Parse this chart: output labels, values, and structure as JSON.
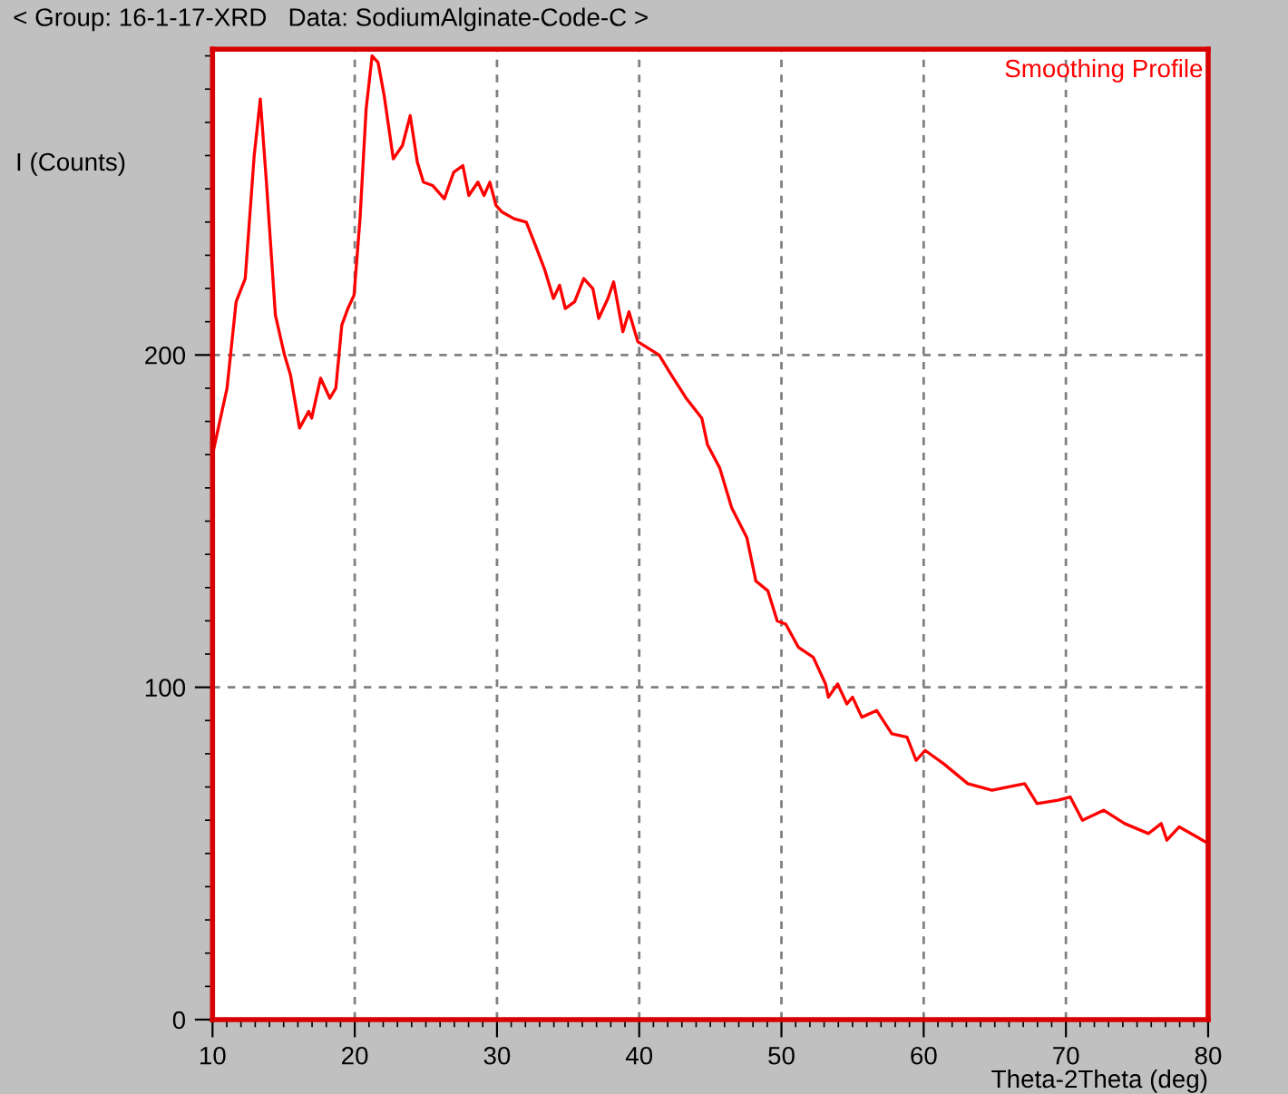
{
  "chart_data": {
    "type": "line",
    "title": "< Group: 16-1-17-XRD   Data: SodiumAlginate-Code-C >",
    "xlabel": "Theta-2Theta (deg)",
    "ylabel": "I (Counts)",
    "annotations": [
      "Smoothing Profile"
    ],
    "series": [
      {
        "color": "#ff0000",
        "x": [
          10,
          11.02,
          11.66,
          12.3,
          12.93,
          13.36,
          13.79,
          14.42,
          15.06,
          15.48,
          16.12,
          16.76,
          16.97,
          17.6,
          18.25,
          18.67,
          19.09,
          19.52,
          19.95,
          20.37,
          20.8,
          21.22,
          21.64,
          22.07,
          22.71,
          23.35,
          23.9,
          24.4,
          24.83,
          25.47,
          26.3,
          26.96,
          27.6,
          28.02,
          28.66,
          29.09,
          29.5,
          29.93,
          30.36,
          31.2,
          32.06,
          32.7,
          33.33,
          33.97,
          34.4,
          34.8,
          35.46,
          36.1,
          36.74,
          37.15,
          37.8,
          38.2,
          38.85,
          39.28,
          39.9,
          41.4,
          42.26,
          43.3,
          44.4,
          44.8,
          45.66,
          46.5,
          47.57,
          48.2,
          49.05,
          49.7,
          50.3,
          51.2,
          52.24,
          53.1,
          53.3,
          53.95,
          54.6,
          55,
          55.65,
          56.7,
          57.76,
          58.83,
          59.47,
          60.1,
          61.4,
          63.1,
          64.8,
          67.1,
          67.97,
          69.45,
          70.3,
          71.16,
          72.65,
          74.13,
          75.8,
          76.7,
          77.1,
          77.96,
          79.2,
          80
        ],
        "values": [
          170,
          190,
          216,
          223,
          260,
          277,
          252,
          212,
          200,
          194,
          178,
          183,
          181,
          193,
          187,
          190,
          209,
          214,
          218,
          241,
          274,
          290,
          288,
          278,
          259,
          263,
          272,
          258,
          252,
          251,
          247,
          255,
          257,
          248,
          252,
          248,
          252,
          245,
          243,
          241,
          240,
          233,
          226,
          217,
          221,
          214,
          216,
          223,
          220,
          211,
          217,
          222,
          207,
          213,
          204,
          200,
          194,
          187,
          181,
          173,
          166,
          154,
          145,
          132,
          129,
          120,
          119,
          112,
          109,
          101,
          97,
          101,
          95,
          97,
          91,
          93,
          86,
          85,
          78,
          81,
          77,
          71,
          69,
          71,
          65,
          66,
          67,
          60,
          63,
          59,
          56,
          59,
          54,
          58,
          55,
          53
        ]
      }
    ],
    "xlim": [
      10,
      80
    ],
    "ylim": [
      0,
      292
    ],
    "xticks": [
      10,
      {
        "value": 11,
        "label": null
      },
      {
        "value": 12,
        "label": null
      },
      {
        "value": 13,
        "label": null
      },
      {
        "value": 14,
        "label": null
      },
      {
        "value": 15,
        "label": null
      },
      {
        "value": 16,
        "label": null
      },
      {
        "value": 17,
        "label": null
      },
      {
        "value": 18,
        "label": null
      },
      {
        "value": 19,
        "label": null
      },
      20,
      {
        "value": 21,
        "label": null
      },
      {
        "value": 22,
        "label": null
      },
      {
        "value": 23,
        "label": null
      },
      {
        "value": 24,
        "label": null
      },
      {
        "value": 25,
        "label": null
      },
      {
        "value": 26,
        "label": null
      },
      {
        "value": 27,
        "label": null
      },
      {
        "value": 28,
        "label": null
      },
      {
        "value": 29,
        "label": null
      },
      30,
      {
        "value": 31,
        "label": null
      },
      {
        "value": 32,
        "label": null
      },
      {
        "value": 33,
        "label": null
      },
      {
        "value": 34,
        "label": null
      },
      {
        "value": 35,
        "label": null
      },
      {
        "value": 36,
        "label": null
      },
      {
        "value": 37,
        "label": null
      },
      {
        "value": 38,
        "label": null
      },
      {
        "value": 39,
        "label": null
      },
      40,
      {
        "value": 41,
        "label": null
      },
      {
        "value": 42,
        "label": null
      },
      {
        "value": 43,
        "label": null
      },
      {
        "value": 44,
        "label": null
      },
      {
        "value": 45,
        "label": null
      },
      {
        "value": 46,
        "label": null
      },
      {
        "value": 47,
        "label": null
      },
      {
        "value": 48,
        "label": null
      },
      {
        "value": 49,
        "label": null
      },
      50,
      {
        "value": 51,
        "label": null
      },
      {
        "value": 52,
        "label": null
      },
      {
        "value": 53,
        "label": null
      },
      {
        "value": 54,
        "label": null
      },
      {
        "value": 55,
        "label": null
      },
      {
        "value": 56,
        "label": null
      },
      {
        "value": 57,
        "label": null
      },
      {
        "value": 58,
        "label": null
      },
      {
        "value": 59,
        "label": null
      },
      60,
      {
        "value": 61,
        "label": null
      },
      {
        "value": 62,
        "label": null
      },
      {
        "value": 63,
        "label": null
      },
      {
        "value": 64,
        "label": null
      },
      {
        "value": 65,
        "label": null
      },
      {
        "value": 66,
        "label": null
      },
      {
        "value": 67,
        "label": null
      },
      {
        "value": 68,
        "label": null
      },
      {
        "value": 69,
        "label": null
      },
      70,
      {
        "value": 71,
        "label": null
      },
      {
        "value": 72,
        "label": null
      },
      {
        "value": 73,
        "label": null
      },
      {
        "value": 74,
        "label": null
      },
      {
        "value": 75,
        "label": null
      },
      {
        "value": 76,
        "label": null
      },
      {
        "value": 77,
        "label": null
      },
      {
        "value": 78,
        "label": null
      },
      {
        "value": 79,
        "label": null
      },
      80
    ],
    "yticks": [
      0,
      {
        "value": 10,
        "label": null
      },
      {
        "value": 20,
        "label": null
      },
      {
        "value": 30,
        "label": null
      },
      {
        "value": 40,
        "label": null
      },
      {
        "value": 50,
        "label": null
      },
      {
        "value": 60,
        "label": null
      },
      {
        "value": 70,
        "label": null
      },
      {
        "value": 80,
        "label": null
      },
      {
        "value": 90,
        "label": null
      },
      100,
      {
        "value": 110,
        "label": null
      },
      {
        "value": 120,
        "label": null
      },
      {
        "value": 130,
        "label": null
      },
      {
        "value": 140,
        "label": null
      },
      {
        "value": 150,
        "label": null
      },
      {
        "value": 160,
        "label": null
      },
      {
        "value": 170,
        "label": null
      },
      {
        "value": 180,
        "label": null
      },
      {
        "value": 190,
        "label": null
      },
      200,
      {
        "value": 210,
        "label": null
      },
      {
        "value": 220,
        "label": null
      },
      {
        "value": 230,
        "label": null
      },
      {
        "value": 240,
        "label": null
      },
      {
        "value": 250,
        "label": null
      },
      {
        "value": 260,
        "label": null
      },
      {
        "value": 270,
        "label": null
      },
      {
        "value": 280,
        "label": null
      },
      {
        "value": 290,
        "label": null
      }
    ],
    "grid": true,
    "line_style": "solid",
    "marker": "none",
    "legend": false
  }
}
